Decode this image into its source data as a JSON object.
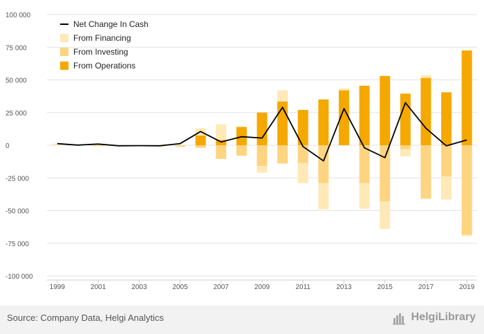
{
  "chart_data": {
    "type": "bar",
    "categories": [
      "1999",
      "2000",
      "2001",
      "2002",
      "2003",
      "2004",
      "2005",
      "2006",
      "2007",
      "2008",
      "2009",
      "2010",
      "2011",
      "2012",
      "2013",
      "2014",
      "2015",
      "2016",
      "2017",
      "2018",
      "2019"
    ],
    "x_tick_labels": [
      "1999",
      "2001",
      "2003",
      "2005",
      "2007",
      "2009",
      "2011",
      "2013",
      "2015",
      "2017",
      "2019"
    ],
    "y_tick_labels": [
      "100 000",
      "75 000",
      "50 000",
      "25 000",
      "0",
      "-25 000",
      "-50 000",
      "-75 000",
      "-100 000"
    ],
    "ylim": [
      -100000,
      100000
    ],
    "stacked": true,
    "grid": true,
    "legend_position": "top-left",
    "series": [
      {
        "name": "From Operations",
        "kind": "bar",
        "color": "#f5a800",
        "values": [
          0,
          0,
          0,
          0,
          0,
          0,
          0,
          7500,
          4000,
          14000,
          25000,
          33500,
          27000,
          35000,
          42000,
          45500,
          53000,
          39500,
          51500,
          40500,
          72500
        ]
      },
      {
        "name": "From Investing",
        "kind": "bar",
        "color": "#fdd480",
        "values": [
          0,
          0,
          -700,
          -700,
          -600,
          -1000,
          -1200,
          -2000,
          -10500,
          -8000,
          -16000,
          -14000,
          -13500,
          -29000,
          0,
          -29000,
          -43000,
          -3000,
          -41000,
          -24000,
          -68500
        ]
      },
      {
        "name": "From Financing",
        "kind": "bar",
        "color": "#fee9b7",
        "values": [
          1200,
          700,
          0,
          0,
          0,
          0,
          0,
          5500,
          12000,
          0,
          -5000,
          8500,
          -15500,
          -20000,
          1500,
          -19500,
          -21000,
          -5500,
          2000,
          -17500,
          -1000
        ]
      },
      {
        "name": "Net Change In Cash",
        "kind": "line",
        "color": "#000000",
        "values": [
          1200,
          100,
          900,
          -400,
          -300,
          -400,
          1200,
          10500,
          2500,
          6500,
          5500,
          29000,
          -1000,
          -12000,
          28000,
          -2000,
          -9500,
          32500,
          13000,
          -500,
          4000
        ]
      }
    ],
    "source": "Source: Company Data, Helgi Analytics",
    "brand": "HelgiLibrary"
  }
}
